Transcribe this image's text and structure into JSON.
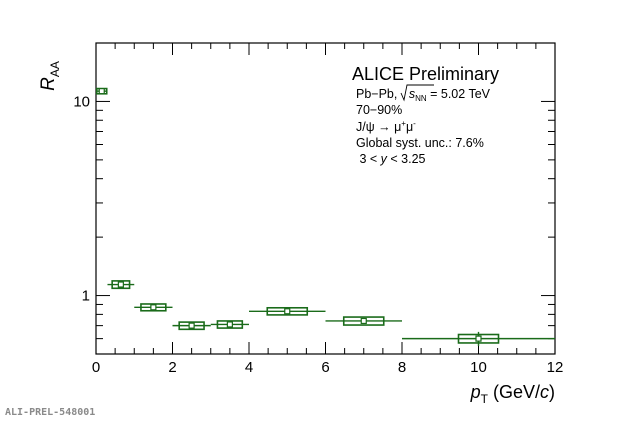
{
  "chart_data": {
    "type": "scatter",
    "title": "",
    "xlabel": "p_T (GeV/c)",
    "ylabel": "R_AA",
    "xlim": [
      0,
      12
    ],
    "ylim": [
      0.5,
      20
    ],
    "yscale": "log",
    "x_ticks": [
      0,
      2,
      4,
      6,
      8,
      10,
      12
    ],
    "x_tick_labels": [
      "0",
      "2",
      "4",
      "6",
      "8",
      "10",
      "12"
    ],
    "y_ticks": [
      1,
      10
    ],
    "y_tick_labels": [
      "1",
      "10"
    ],
    "grid": false,
    "legend": null,
    "series": [
      {
        "color": "#1a6b1a",
        "points": [
          {
            "x": 0.15,
            "x_low": 0.0,
            "x_high": 0.3,
            "y": 11.3,
            "stat": 0.25,
            "syst": 0.35
          },
          {
            "x": 0.65,
            "x_low": 0.3,
            "x_high": 1.0,
            "y": 1.14,
            "stat": 0.03,
            "syst": 0.05
          },
          {
            "x": 1.5,
            "x_low": 1.0,
            "x_high": 2.0,
            "y": 0.87,
            "stat": 0.02,
            "syst": 0.035
          },
          {
            "x": 2.5,
            "x_low": 2.0,
            "x_high": 3.0,
            "y": 0.7,
            "stat": 0.015,
            "syst": 0.03
          },
          {
            "x": 3.5,
            "x_low": 3.0,
            "x_high": 4.0,
            "y": 0.71,
            "stat": 0.015,
            "syst": 0.03
          },
          {
            "x": 5.0,
            "x_low": 4.0,
            "x_high": 6.0,
            "y": 0.83,
            "stat": 0.02,
            "syst": 0.035
          },
          {
            "x": 7.0,
            "x_low": 6.0,
            "x_high": 8.0,
            "y": 0.74,
            "stat": 0.02,
            "syst": 0.035
          },
          {
            "x": 10.0,
            "x_low": 8.0,
            "x_high": 12.0,
            "y": 0.6,
            "stat": 0.05,
            "syst": 0.03
          }
        ]
      }
    ],
    "annotations": {
      "header": "ALICE Preliminary",
      "collision": "Pb−Pb, ",
      "sqrt_label": "s",
      "sqrt_sub": "NN",
      "energy": " = 5.02 TeV",
      "centrality": "70−90%",
      "decay": "J/ψ → μ",
      "decay_sup1": "+",
      "decay_mid": "μ",
      "decay_sup2": "-",
      "global_syst": "Global syst. unc.: 7.6%",
      "rapidity_pre": " 3 < ",
      "rapidity_var": "y",
      "rapidity_post": " < 3.25"
    },
    "watermark": "ALI-PREL-548001"
  }
}
